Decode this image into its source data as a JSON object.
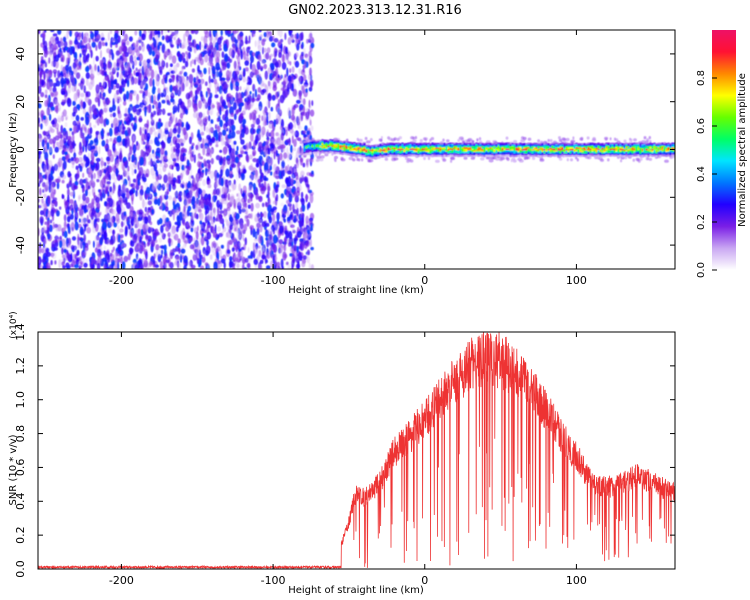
{
  "title": "GN02.2023.313.12.31.R16",
  "chart_data": [
    {
      "type": "heatmap",
      "xlabel": "Height of straight line (km)",
      "ylabel": "Frequency (Hz)",
      "xlim": [
        -255,
        165
      ],
      "ylim": [
        -50,
        50
      ],
      "xticks": [
        -200,
        -100,
        0,
        100
      ],
      "xtick_labels": [
        "-200",
        "-100",
        "0",
        "100"
      ],
      "yticks": [
        -40,
        -20,
        0,
        20,
        40
      ],
      "ytick_labels": [
        "-40",
        "-20",
        "0",
        "20",
        "40"
      ],
      "colorbar": {
        "label": "Normalized spectral amplitude",
        "range": [
          0,
          1
        ],
        "ticks": [
          0,
          0.2,
          0.4,
          0.6,
          0.8
        ],
        "tick_labels": [
          "0.0",
          "0.2",
          "0.4",
          "0.6",
          "0.8"
        ],
        "colormap": [
          "#ffffff",
          "#c9a6f2",
          "#7a1ee6",
          "#2200ff",
          "#0077ff",
          "#00e5ff",
          "#00ff66",
          "#66ff00",
          "#ffff00",
          "#ff8800",
          "#ff1133",
          "#ee1166"
        ]
      },
      "regions": [
        {
          "description": "broadband noise",
          "x_range": [
            -255,
            -78
          ],
          "y_range": [
            -50,
            50
          ],
          "amplitude": 0.3
        },
        {
          "description": "narrow signal band",
          "x_range": [
            -80,
            165
          ],
          "center_frequency": 0,
          "half_width_hz": 3,
          "peak_amplitude": 1.0
        }
      ]
    },
    {
      "type": "line",
      "xlabel": "Height of straight line (km)",
      "ylabel": "SNR (10 * v/v)",
      "ylabel_multiplier": "(x10⁴)",
      "xlim": [
        -255,
        165
      ],
      "ylim": [
        0,
        1.4
      ],
      "xticks": [
        -200,
        -100,
        0,
        100
      ],
      "xtick_labels": [
        "-200",
        "-100",
        "0",
        "100"
      ],
      "yticks": [
        0,
        0.2,
        0.4,
        0.6,
        0.8,
        1.0,
        1.2,
        1.4
      ],
      "ytick_labels": [
        "0.0",
        "0.2",
        "0.4",
        "0.6",
        "0.8",
        "1.0",
        "1.2",
        "1.4"
      ],
      "series": [
        {
          "color": "#ee3333",
          "envelope": {
            "x": [
              -255,
              -100,
              -60,
              -50,
              -45,
              -40,
              -30,
              -20,
              -10,
              0,
              10,
              20,
              30,
              40,
              50,
              60,
              70,
              80,
              90,
              100,
              110,
              120,
              130,
              140,
              150,
              165
            ],
            "y": [
              0.01,
              0.01,
              0.01,
              0.3,
              0.5,
              0.45,
              0.55,
              0.75,
              0.85,
              0.95,
              1.08,
              1.2,
              1.3,
              1.35,
              1.33,
              1.27,
              1.18,
              1.02,
              0.85,
              0.72,
              0.55,
              0.52,
              0.55,
              0.6,
              0.55,
              0.48
            ]
          }
        }
      ]
    }
  ]
}
